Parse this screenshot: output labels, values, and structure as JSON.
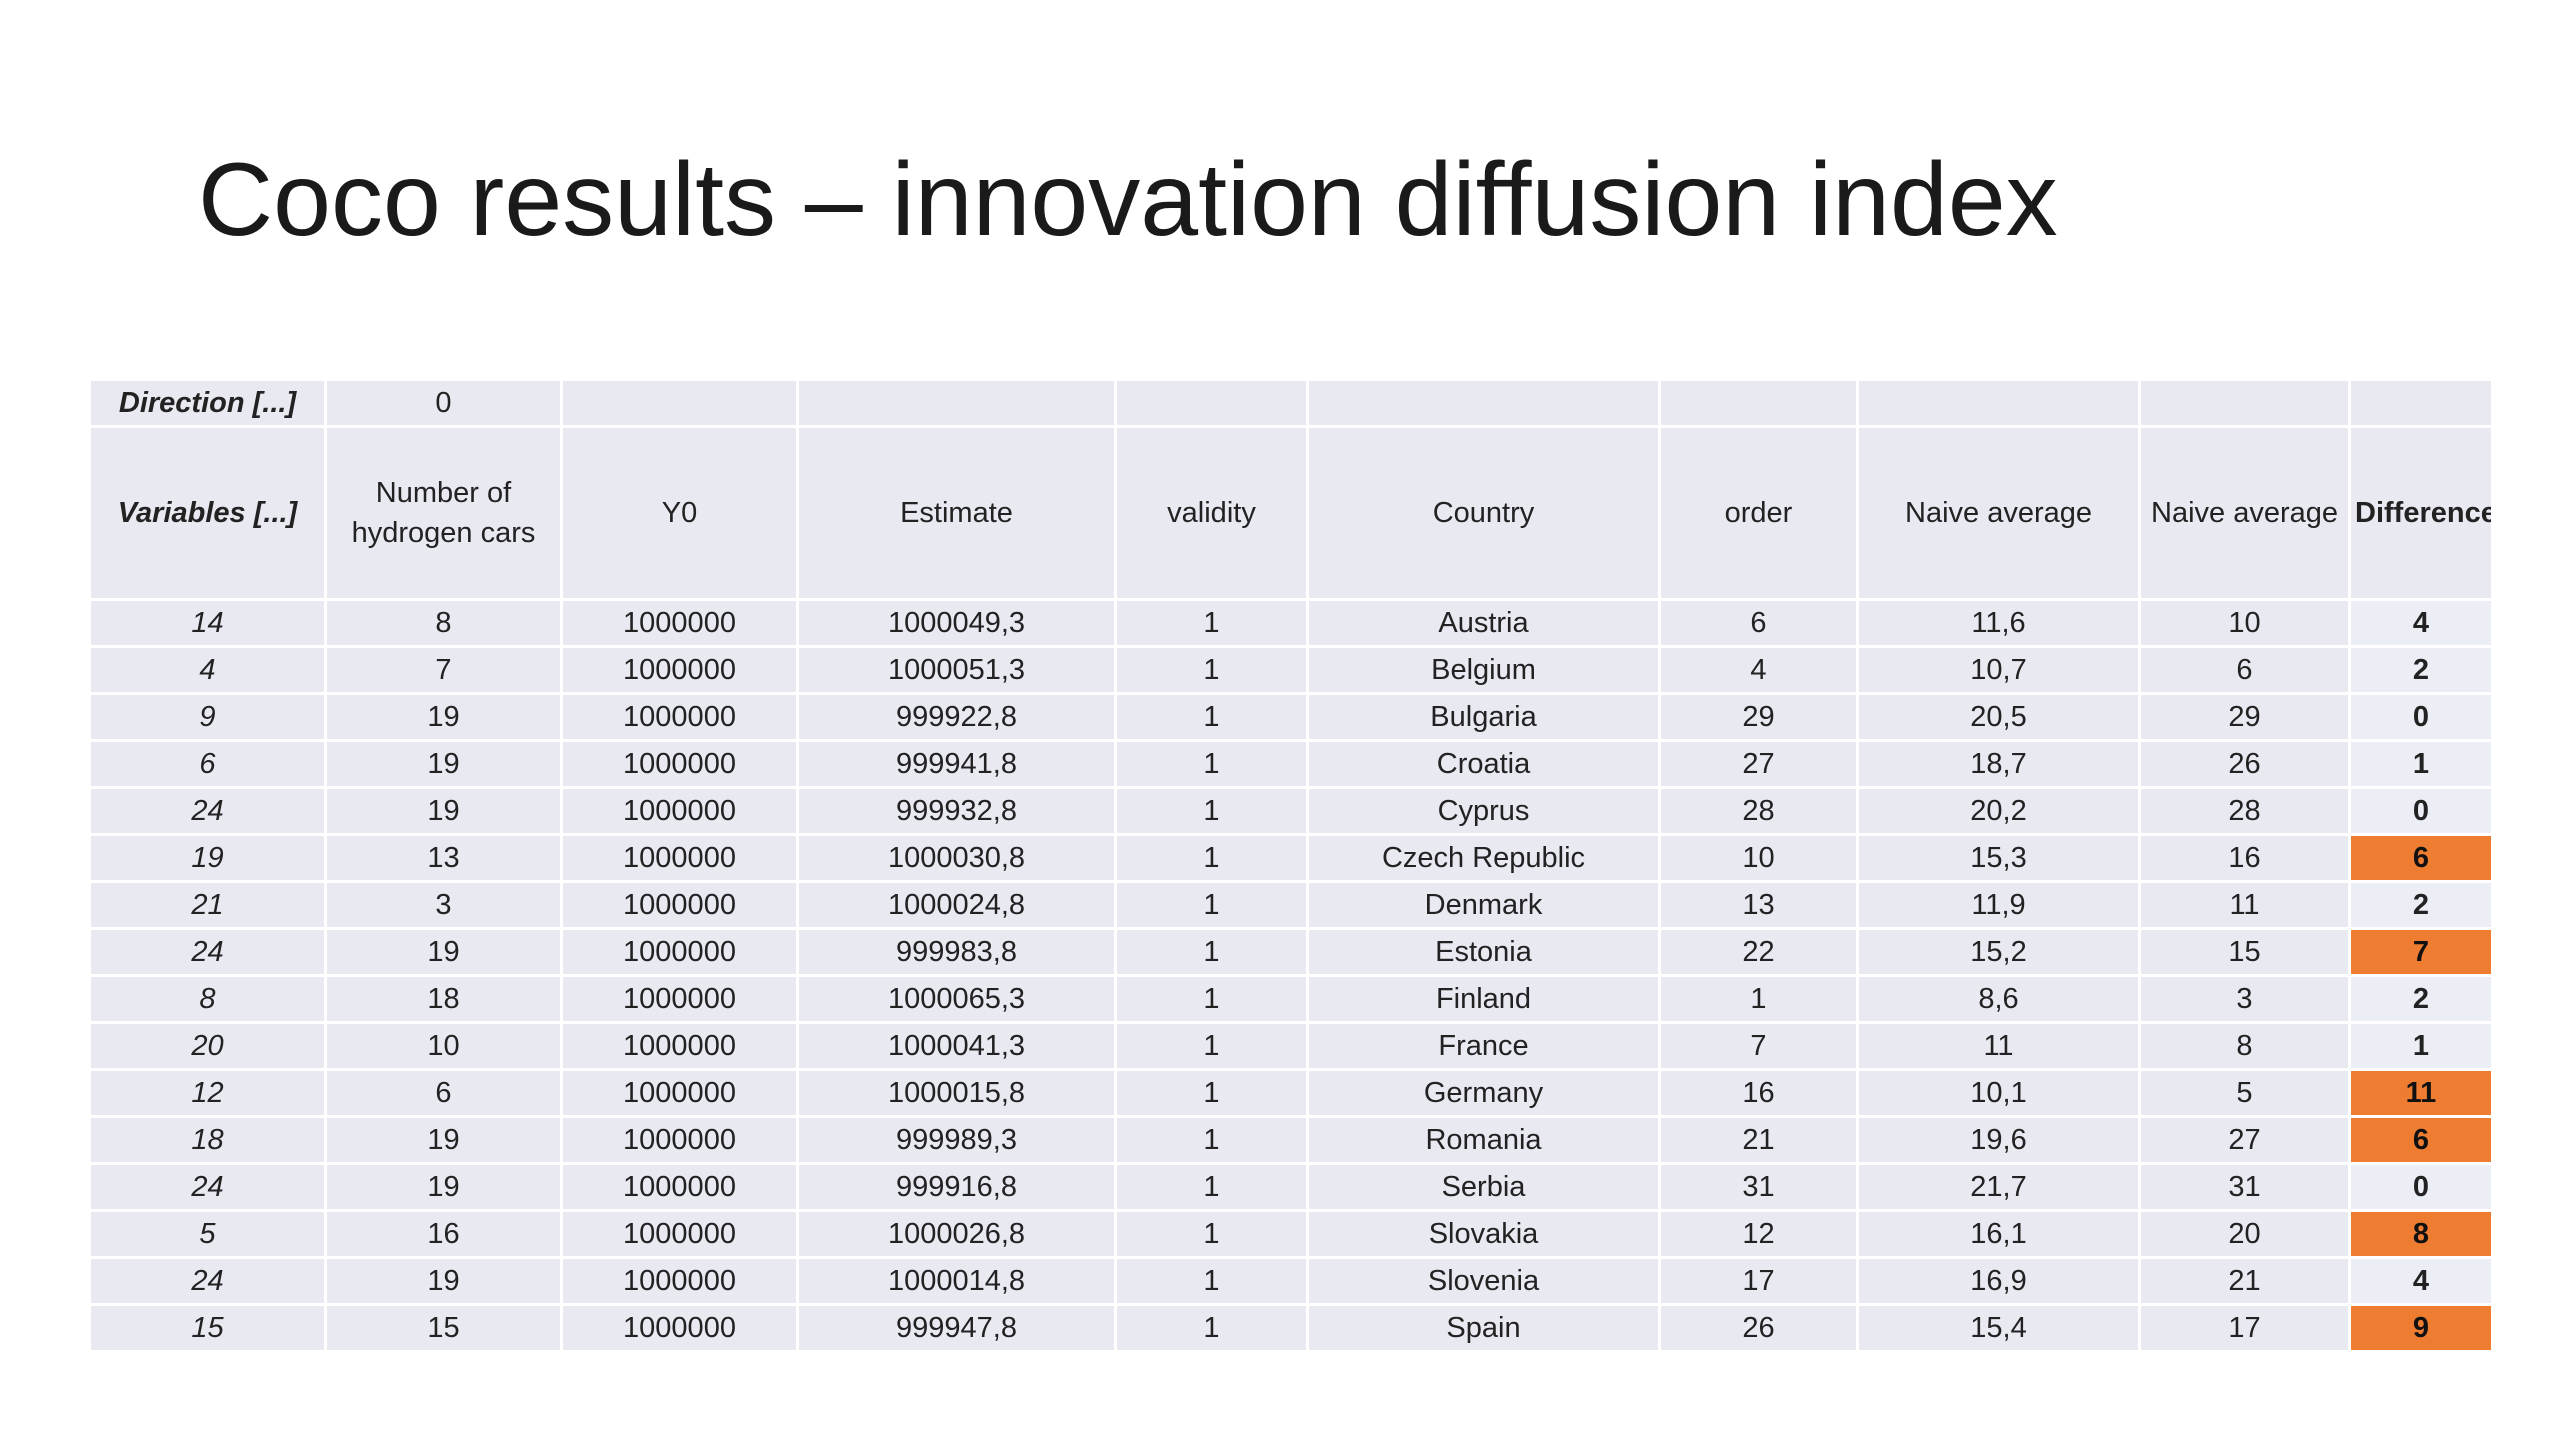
{
  "slide": {
    "title": "Coco results – innovation diffusion index"
  },
  "colors": {
    "cell_background": "#e8e9f1",
    "highlight": "#ee7d32"
  },
  "table": {
    "direction_label": "Direction [...]",
    "direction_value": "0",
    "headers": [
      "Variables [...]",
      "Number of hydrogen cars",
      "Y0",
      "Estimate",
      "validity",
      "Country",
      "order",
      "Naive average",
      "Naive average",
      "Difference"
    ],
    "rows": [
      {
        "variables": "14",
        "cars": "8",
        "y0": "1000000",
        "estimate": "1000049,3",
        "validity": "1",
        "country": "Austria",
        "order": "6",
        "naive1": "11,6",
        "naive2": "10",
        "difference": "4",
        "highlight": false
      },
      {
        "variables": "4",
        "cars": "7",
        "y0": "1000000",
        "estimate": "1000051,3",
        "validity": "1",
        "country": "Belgium",
        "order": "4",
        "naive1": "10,7",
        "naive2": "6",
        "difference": "2",
        "highlight": false
      },
      {
        "variables": "9",
        "cars": "19",
        "y0": "1000000",
        "estimate": "999922,8",
        "validity": "1",
        "country": "Bulgaria",
        "order": "29",
        "naive1": "20,5",
        "naive2": "29",
        "difference": "0",
        "highlight": false
      },
      {
        "variables": "6",
        "cars": "19",
        "y0": "1000000",
        "estimate": "999941,8",
        "validity": "1",
        "country": "Croatia",
        "order": "27",
        "naive1": "18,7",
        "naive2": "26",
        "difference": "1",
        "highlight": false
      },
      {
        "variables": "24",
        "cars": "19",
        "y0": "1000000",
        "estimate": "999932,8",
        "validity": "1",
        "country": "Cyprus",
        "order": "28",
        "naive1": "20,2",
        "naive2": "28",
        "difference": "0",
        "highlight": false
      },
      {
        "variables": "19",
        "cars": "13",
        "y0": "1000000",
        "estimate": "1000030,8",
        "validity": "1",
        "country": "Czech Republic",
        "order": "10",
        "naive1": "15,3",
        "naive2": "16",
        "difference": "6",
        "highlight": true
      },
      {
        "variables": "21",
        "cars": "3",
        "y0": "1000000",
        "estimate": "1000024,8",
        "validity": "1",
        "country": "Denmark",
        "order": "13",
        "naive1": "11,9",
        "naive2": "11",
        "difference": "2",
        "highlight": false
      },
      {
        "variables": "24",
        "cars": "19",
        "y0": "1000000",
        "estimate": "999983,8",
        "validity": "1",
        "country": "Estonia",
        "order": "22",
        "naive1": "15,2",
        "naive2": "15",
        "difference": "7",
        "highlight": true
      },
      {
        "variables": "8",
        "cars": "18",
        "y0": "1000000",
        "estimate": "1000065,3",
        "validity": "1",
        "country": "Finland",
        "order": "1",
        "naive1": "8,6",
        "naive2": "3",
        "difference": "2",
        "highlight": false
      },
      {
        "variables": "20",
        "cars": "10",
        "y0": "1000000",
        "estimate": "1000041,3",
        "validity": "1",
        "country": "France",
        "order": "7",
        "naive1": "11",
        "naive2": "8",
        "difference": "1",
        "highlight": false
      },
      {
        "variables": "12",
        "cars": "6",
        "y0": "1000000",
        "estimate": "1000015,8",
        "validity": "1",
        "country": "Germany",
        "order": "16",
        "naive1": "10,1",
        "naive2": "5",
        "difference": "11",
        "highlight": true
      },
      {
        "variables": "18",
        "cars": "19",
        "y0": "1000000",
        "estimate": "999989,3",
        "validity": "1",
        "country": "Romania",
        "order": "21",
        "naive1": "19,6",
        "naive2": "27",
        "difference": "6",
        "highlight": true
      },
      {
        "variables": "24",
        "cars": "19",
        "y0": "1000000",
        "estimate": "999916,8",
        "validity": "1",
        "country": "Serbia",
        "order": "31",
        "naive1": "21,7",
        "naive2": "31",
        "difference": "0",
        "highlight": false
      },
      {
        "variables": "5",
        "cars": "16",
        "y0": "1000000",
        "estimate": "1000026,8",
        "validity": "1",
        "country": "Slovakia",
        "order": "12",
        "naive1": "16,1",
        "naive2": "20",
        "difference": "8",
        "highlight": true
      },
      {
        "variables": "24",
        "cars": "19",
        "y0": "1000000",
        "estimate": "1000014,8",
        "validity": "1",
        "country": "Slovenia",
        "order": "17",
        "naive1": "16,9",
        "naive2": "21",
        "difference": "4",
        "highlight": false
      },
      {
        "variables": "15",
        "cars": "15",
        "y0": "1000000",
        "estimate": "999947,8",
        "validity": "1",
        "country": "Spain",
        "order": "26",
        "naive1": "15,4",
        "naive2": "17",
        "difference": "9",
        "highlight": true
      }
    ]
  }
}
